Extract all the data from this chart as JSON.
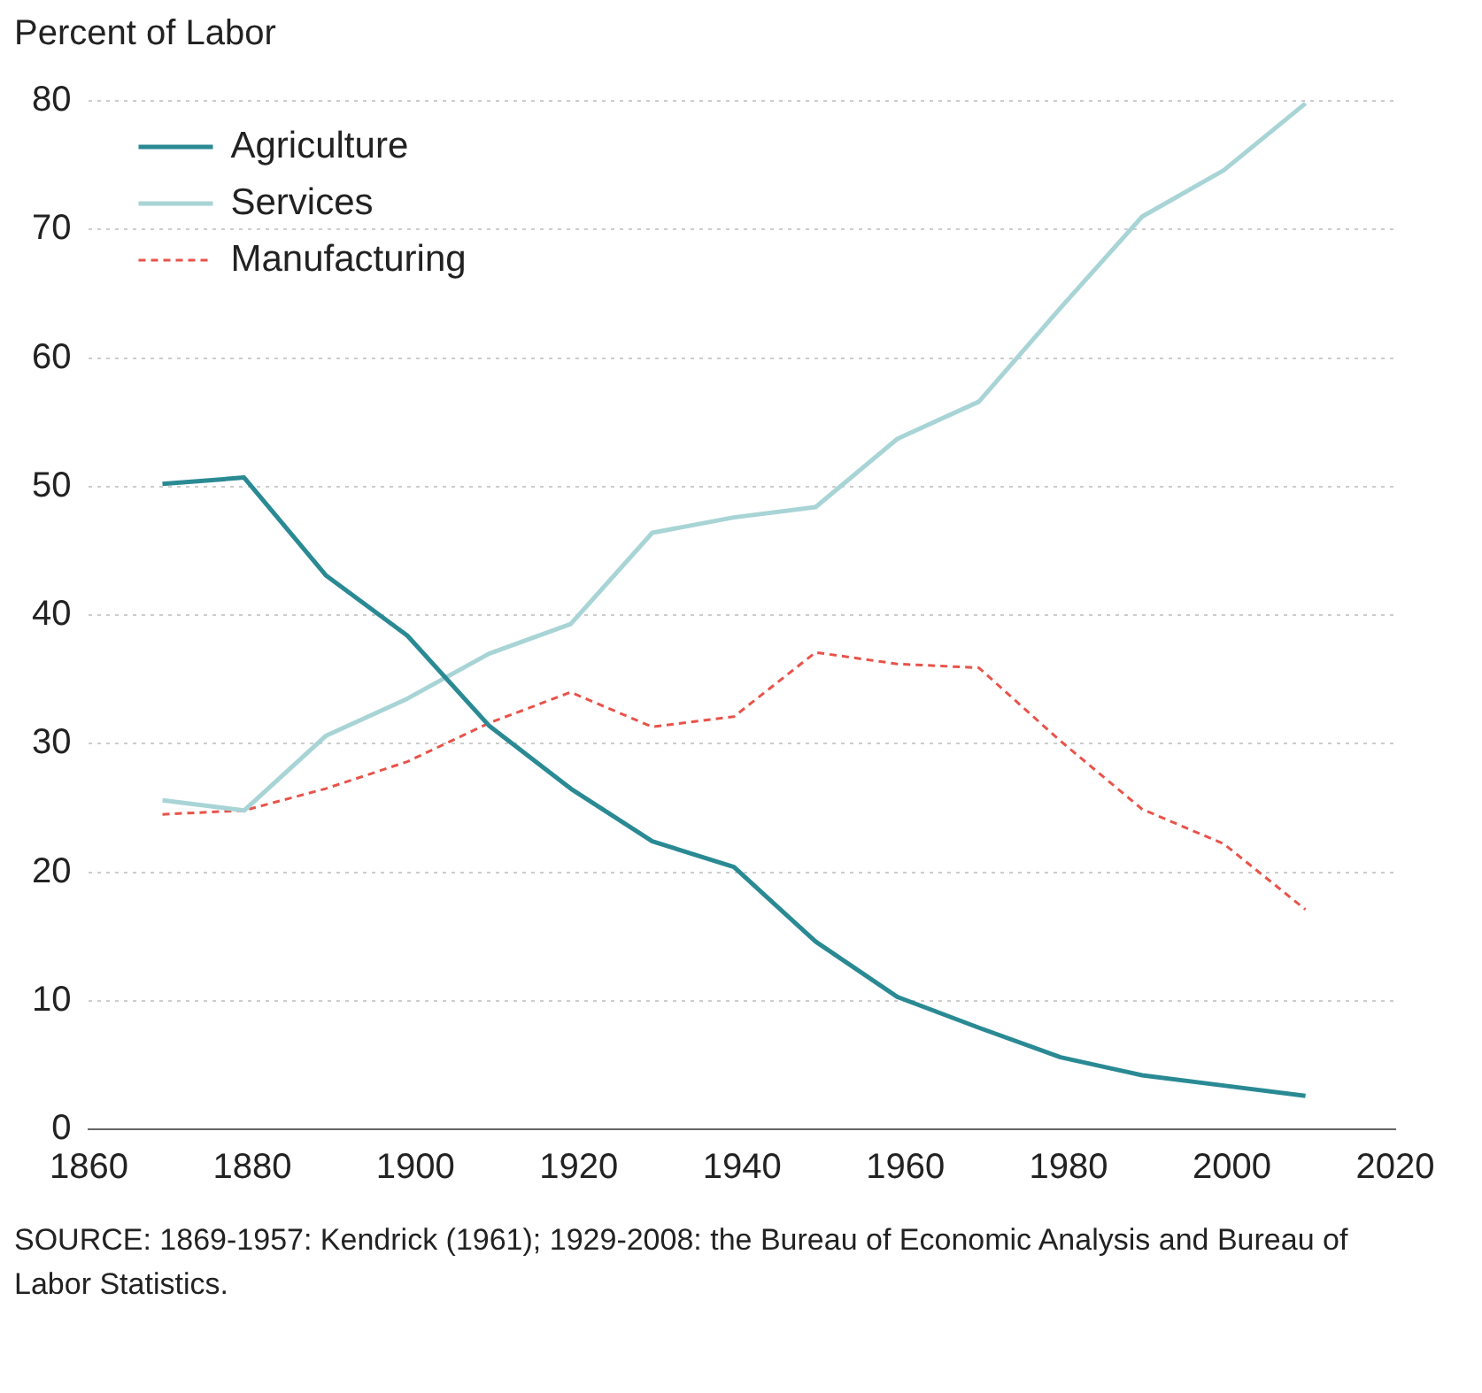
{
  "chart_data": {
    "type": "line",
    "ylabel": "Percent of Labor",
    "annotations": [
      "SOURCE: 1869-1957: Kendrick (1961); 1929-2008: the Bureau of Economic Analysis and Bureau of Labor Statistics."
    ],
    "x": [
      1869,
      1879,
      1889,
      1899,
      1909,
      1919,
      1929,
      1939,
      1949,
      1959,
      1969,
      1979,
      1989,
      1999,
      2009
    ],
    "xlim": [
      1860,
      2020
    ],
    "xticks": [
      1860,
      1880,
      1900,
      1920,
      1940,
      1960,
      1980,
      2000,
      2020
    ],
    "ylim": [
      0,
      80
    ],
    "yticks": [
      0,
      10,
      20,
      30,
      40,
      50,
      60,
      70,
      80
    ],
    "grid": "y",
    "legend": "top left",
    "marker": "none",
    "series": [
      {
        "name": "Agriculture",
        "color": "#2a8a94",
        "line_style": "solid",
        "values": [
          50.2,
          50.7,
          43.1,
          38.4,
          31.4,
          26.5,
          22.4,
          20.4,
          14.6,
          10.3,
          7.9,
          5.6,
          4.2,
          3.4,
          2.6
        ]
      },
      {
        "name": "Services",
        "color": "#a8d4d6",
        "line_style": "solid",
        "values": [
          25.6,
          24.8,
          30.6,
          33.5,
          37.0,
          39.3,
          46.4,
          47.6,
          48.4,
          53.7,
          56.6,
          63.9,
          71.0,
          74.6,
          79.8
        ]
      },
      {
        "name": "Manufacturing",
        "color": "#e8534a",
        "line_style": "dashed",
        "values": [
          24.5,
          24.8,
          26.5,
          28.6,
          31.6,
          34.0,
          31.3,
          32.1,
          37.1,
          36.2,
          35.9,
          30.2,
          24.9,
          22.2,
          17.1
        ]
      }
    ]
  }
}
